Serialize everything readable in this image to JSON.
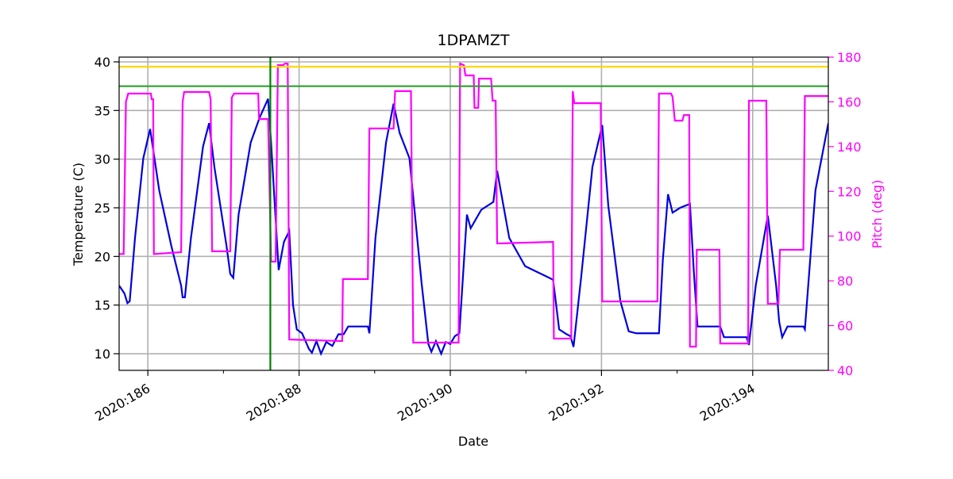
{
  "chart_data": {
    "type": "line",
    "title": "1DPAMZT",
    "xlabel": "Date",
    "ylabel": "Temperature (C)",
    "y2label": "Pitch (deg)",
    "xlim": [
      185.62,
      195.0
    ],
    "xticks": [
      {
        "value": 186,
        "label": "2020:186"
      },
      {
        "value": 188,
        "label": "2020:188"
      },
      {
        "value": 190,
        "label": "2020:190"
      },
      {
        "value": 192,
        "label": "2020:192"
      },
      {
        "value": 194,
        "label": "2020:194"
      }
    ],
    "xminorticks": [
      187,
      189,
      191,
      193
    ],
    "ylim": [
      8.29,
      40.49
    ],
    "yticks": [
      10,
      15,
      20,
      25,
      30,
      35,
      40
    ],
    "y2lim": [
      40,
      180
    ],
    "y2ticks": [
      40,
      60,
      80,
      100,
      120,
      140,
      160,
      180
    ],
    "y2color": "#ff00ff",
    "grid": true,
    "hlines": [
      {
        "y": 39.5,
        "color": "#ffd700"
      },
      {
        "y": 37.5,
        "color": "#2ca02c"
      }
    ],
    "vlines": [
      {
        "x": 187.62,
        "color": "#008000"
      }
    ],
    "series": [
      {
        "color": "#0000e0",
        "x": [
          185.62,
          185.69,
          185.73,
          185.76,
          185.83,
          185.94,
          186.03,
          186.15,
          186.31,
          186.44,
          186.46,
          186.49,
          186.57,
          186.73,
          186.81,
          186.88,
          187.04,
          187.09,
          187.13,
          187.2,
          187.36,
          187.48,
          187.59,
          187.63,
          187.73,
          187.8,
          187.87,
          187.92,
          187.97,
          188.04,
          188.13,
          188.17,
          188.23,
          188.29,
          188.36,
          188.44,
          188.52,
          188.59,
          188.65,
          188.91,
          188.93,
          189.01,
          189.15,
          189.25,
          189.33,
          189.46,
          189.62,
          189.71,
          189.75,
          189.81,
          189.88,
          189.94,
          190.0,
          190.06,
          190.12,
          190.22,
          190.27,
          190.41,
          190.57,
          190.62,
          190.78,
          190.99,
          191.31,
          191.36,
          191.44,
          191.54,
          191.59,
          191.63,
          191.73,
          191.88,
          192.01,
          192.09,
          192.25,
          192.36,
          192.46,
          192.76,
          192.81,
          192.88,
          192.94,
          193.04,
          193.17,
          193.22,
          193.27,
          193.57,
          193.62,
          193.92,
          193.95,
          194.04,
          194.2,
          194.31,
          194.35,
          194.39,
          194.46,
          194.67,
          194.69,
          194.83,
          195.0
        ],
        "values": [
          17.0,
          16.2,
          15.2,
          15.4,
          21.9,
          30.1,
          33.1,
          26.8,
          21.1,
          17.0,
          15.8,
          15.8,
          21.9,
          31.3,
          33.7,
          29.2,
          21.1,
          18.2,
          17.8,
          24.3,
          31.7,
          34.3,
          36.2,
          31.7,
          18.6,
          21.5,
          22.6,
          15.0,
          12.5,
          12.1,
          10.5,
          10.1,
          11.3,
          10.0,
          11.2,
          10.8,
          12.0,
          12.0,
          12.8,
          12.8,
          12.1,
          21.9,
          31.7,
          35.7,
          32.7,
          30.1,
          17.3,
          11.0,
          10.2,
          11.3,
          10.0,
          11.2,
          11.0,
          11.8,
          12.1,
          24.3,
          22.9,
          24.8,
          25.6,
          28.8,
          21.9,
          19.0,
          17.8,
          17.6,
          12.5,
          12.0,
          11.8,
          10.7,
          17.8,
          29.2,
          33.5,
          25.2,
          15.4,
          12.3,
          12.1,
          12.1,
          19.5,
          26.4,
          24.5,
          25.0,
          25.4,
          18.6,
          12.8,
          12.8,
          11.7,
          11.7,
          10.9,
          17.0,
          24.2,
          17.0,
          13.3,
          11.7,
          12.8,
          12.8,
          12.5,
          26.8,
          33.7
        ]
      },
      {
        "color": "#ff00ff",
        "axis": "y2",
        "x": [
          185.62,
          185.68,
          185.71,
          185.74,
          186.04,
          186.05,
          186.07,
          186.08,
          186.44,
          186.46,
          186.48,
          186.81,
          186.83,
          186.85,
          187.09,
          187.11,
          187.14,
          187.46,
          187.47,
          187.59,
          187.63,
          187.69,
          187.72,
          187.79,
          187.81,
          187.85,
          187.87,
          188.57,
          188.58,
          188.91,
          188.93,
          189.25,
          189.27,
          189.48,
          189.51,
          190.11,
          190.13,
          190.18,
          190.2,
          190.31,
          190.32,
          190.37,
          190.38,
          190.54,
          190.56,
          190.6,
          190.62,
          191.36,
          191.37,
          191.6,
          191.62,
          191.64,
          191.99,
          192.01,
          192.74,
          192.76,
          192.92,
          192.94,
          192.97,
          193.07,
          193.09,
          193.16,
          193.17,
          193.25,
          193.26,
          193.56,
          193.57,
          193.94,
          193.95,
          194.18,
          194.2,
          194.34,
          194.36,
          194.67,
          194.69,
          195.0
        ],
        "values": [
          92,
          92,
          160,
          163.7,
          163.7,
          161.2,
          161.2,
          92,
          92.8,
          160,
          164.4,
          164.4,
          161.2,
          93.2,
          93.2,
          161.9,
          163.7,
          163.7,
          152.3,
          152.3,
          88.6,
          88.6,
          176.4,
          176.4,
          177.1,
          177.1,
          53.8,
          53.1,
          80.8,
          80.8,
          148.1,
          148.1,
          164.8,
          164.8,
          52.4,
          52.4,
          177.1,
          176.4,
          171.8,
          171.8,
          157.3,
          157.3,
          170.4,
          170.4,
          160.5,
          160.5,
          96.7,
          97.4,
          54.2,
          54.2,
          164.8,
          159.4,
          159.4,
          70.8,
          70.8,
          163.7,
          163.7,
          162.2,
          151.6,
          151.6,
          154.1,
          154.1,
          50.6,
          50.6,
          93.9,
          93.9,
          52.0,
          52.0,
          160.5,
          160.5,
          69.8,
          69.8,
          93.9,
          93.9,
          162.6,
          162.6
        ]
      }
    ]
  }
}
